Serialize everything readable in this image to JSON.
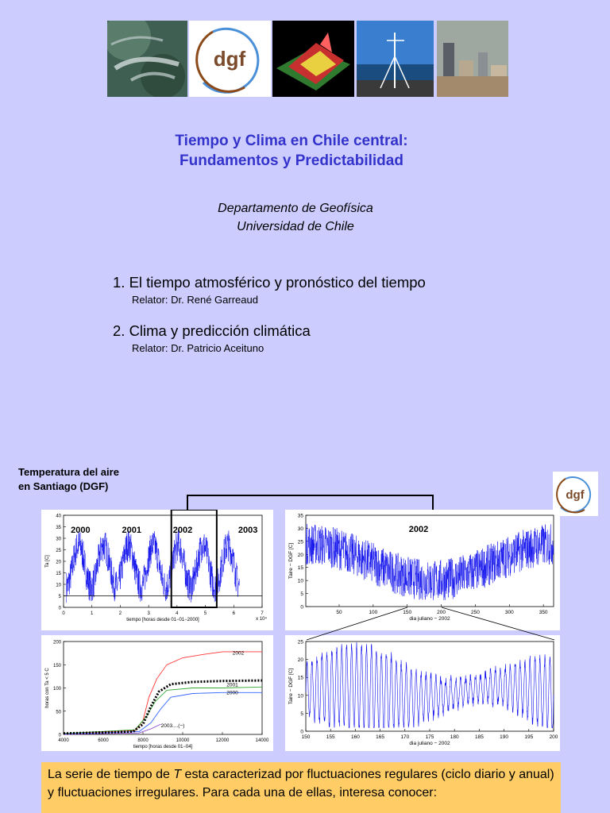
{
  "header_images": [
    {
      "name": "satellite-image"
    },
    {
      "name": "dgf-logo"
    },
    {
      "name": "3d-terrain-image"
    },
    {
      "name": "weather-station-image"
    },
    {
      "name": "city-skyline-image"
    }
  ],
  "logo_text": "dgf",
  "title_line1": "Tiempo y Clima en Chile central:",
  "title_line2": "Fundamentos y Predictabilidad",
  "dept_line1": "Departamento de Geofísica",
  "dept_line2": "Universidad de Chile",
  "items": [
    {
      "label": "1. El tiempo atmosférico y pronóstico del tiempo",
      "relator": "Relator: Dr. René Garreaud"
    },
    {
      "label": "2. Clima y predicción climática",
      "relator": "Relator: Dr. Patricio Aceituno"
    }
  ],
  "section_label_1": "Temperatura del aire",
  "section_label_2": "en Santiago (DGF)",
  "chart_data": [
    {
      "type": "line",
      "ylabel": "Ta [C]",
      "xlabel": "tiempo [horas desde 01−01−2000]",
      "x_multiplier": "x 10⁴",
      "xlim": [
        0,
        7
      ],
      "ylim": [
        0,
        40
      ],
      "xticks": [
        "0",
        "1",
        "2",
        "3",
        "4",
        "5",
        "6",
        "7"
      ],
      "yticks": [
        "0",
        "5",
        "10",
        "15",
        "20",
        "25",
        "30",
        "35",
        "40"
      ],
      "annotations": [
        "2000",
        "2001",
        "2002",
        "2003"
      ],
      "threshold_line": 5,
      "highlight_range": [
        3.8,
        5.4
      ]
    },
    {
      "type": "line",
      "title": "2002",
      "ylabel": "Taire − DGF [C]",
      "xlabel": "dia juliano − 2002",
      "xlim": [
        1,
        365
      ],
      "ylim": [
        0,
        35
      ],
      "xticks": [
        "50",
        "100",
        "150",
        "200",
        "250",
        "300",
        "350"
      ],
      "yticks": [
        "0",
        "5",
        "10",
        "15",
        "20",
        "25",
        "30",
        "35"
      ]
    },
    {
      "type": "line",
      "ylabel": "horas con Ta < 5 C",
      "xlabel": "tiempo [horas desde 01−04]",
      "xlim": [
        4000,
        14000
      ],
      "ylim": [
        0,
        200
      ],
      "xticks": [
        "4000",
        "6000",
        "8000",
        "10000",
        "12000",
        "14000"
      ],
      "yticks": [
        "0",
        "50",
        "100",
        "150",
        "200"
      ],
      "series": [
        {
          "name": "2002",
          "color": "#ff3333",
          "values": [
            [
              4000,
              2
            ],
            [
              7600,
              8
            ],
            [
              8000,
              30
            ],
            [
              8300,
              80
            ],
            [
              8700,
              120
            ],
            [
              9200,
              150
            ],
            [
              10000,
              165
            ],
            [
              11000,
              172
            ],
            [
              12000,
              178
            ],
            [
              14000,
              178
            ]
          ]
        },
        {
          "name": "2001",
          "color": "#33aa33",
          "values": [
            [
              4000,
              2
            ],
            [
              7600,
              10
            ],
            [
              8200,
              40
            ],
            [
              8600,
              70
            ],
            [
              9200,
              95
            ],
            [
              10500,
              100
            ],
            [
              12000,
              100
            ],
            [
              14000,
              102
            ]
          ]
        },
        {
          "name": "2000",
          "color": "#3366ff",
          "values": [
            [
              4000,
              1
            ],
            [
              7800,
              6
            ],
            [
              8400,
              25
            ],
            [
              8900,
              55
            ],
            [
              9400,
              80
            ],
            [
              10500,
              88
            ],
            [
              12000,
              90
            ],
            [
              14000,
              90
            ]
          ]
        },
        {
          "name": "2003....(−)",
          "color": "#8844cc",
          "values": [
            [
              4000,
              0
            ],
            [
              7800,
              3
            ],
            [
              8400,
              12
            ],
            [
              8900,
              22
            ]
          ]
        },
        {
          "name": "",
          "color": "#000000",
          "values": [
            [
              4000,
              2
            ],
            [
              7500,
              6
            ],
            [
              8000,
              22
            ],
            [
              8400,
              60
            ],
            [
              8800,
              92
            ],
            [
              9400,
              108
            ],
            [
              10500,
              113
            ],
            [
              12000,
              115
            ],
            [
              14000,
              116
            ]
          ]
        }
      ]
    },
    {
      "type": "line",
      "ylabel": "Taire − DGF [C]",
      "xlabel": "dia juliano − 2002",
      "xlim": [
        150,
        200
      ],
      "ylim": [
        0,
        25
      ],
      "xticks": [
        "150",
        "155",
        "160",
        "165",
        "170",
        "175",
        "180",
        "185",
        "190",
        "195",
        "200"
      ],
      "yticks": [
        "0",
        "5",
        "10",
        "15",
        "20",
        "25"
      ]
    }
  ],
  "caption_pre": "La serie de tiempo de ",
  "caption_var": "T",
  "caption_post": " esta caracterizad por fluctuaciones regulares (ciclo diario y anual) y fluctuaciones irregulares. Para cada una de ellas, interesa conocer:"
}
